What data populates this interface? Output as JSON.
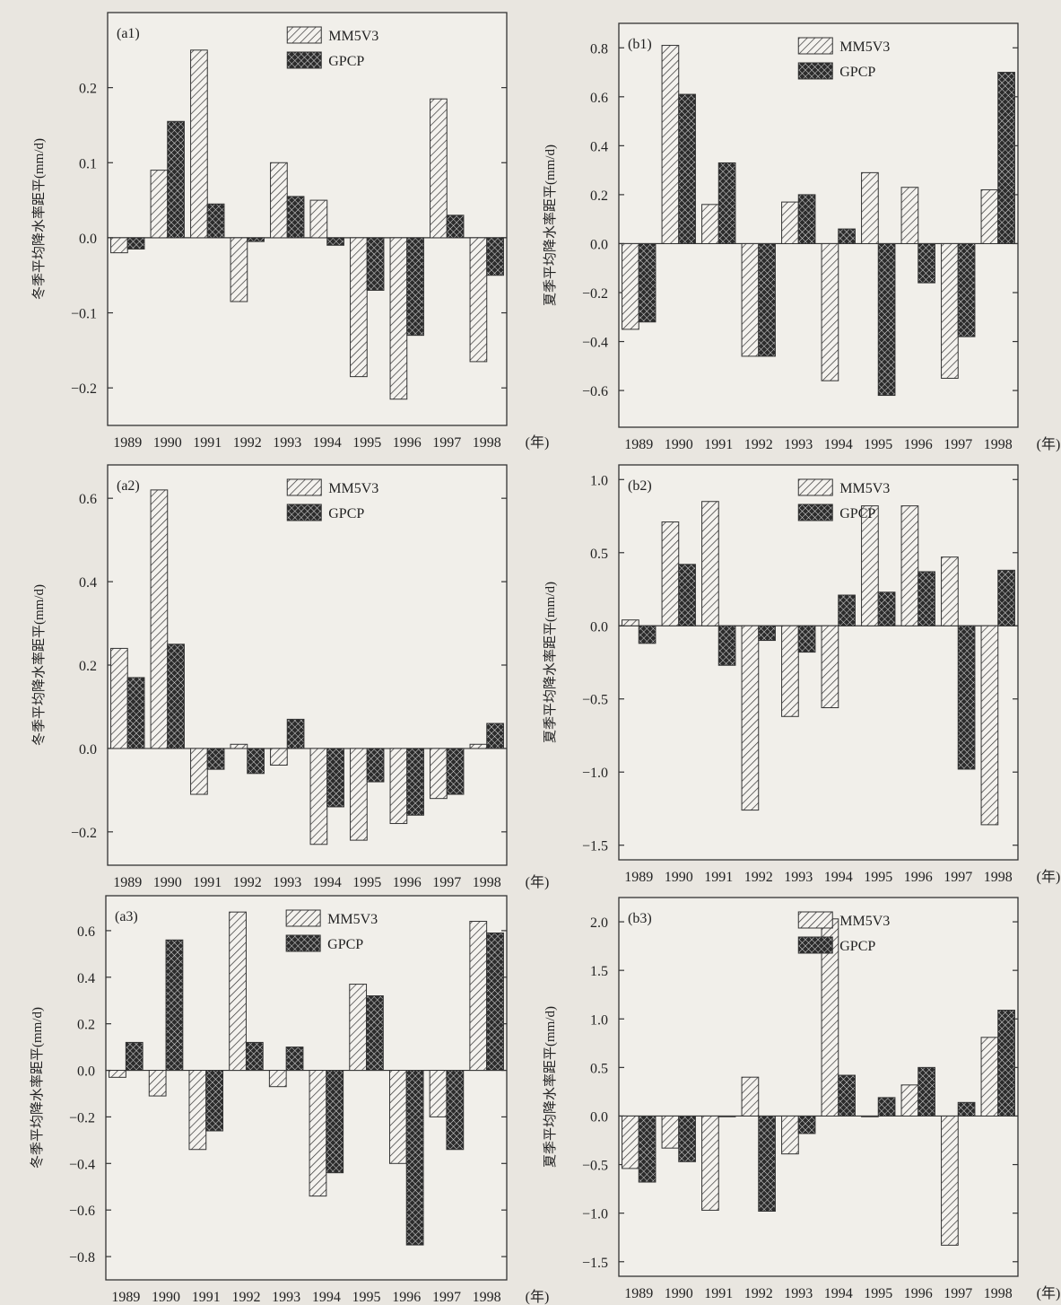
{
  "unit_label": "(年)",
  "chart_data": [
    {
      "id": "a1",
      "type": "bar",
      "panel_label": "(a1)",
      "ylabel": "冬季平均降水率距平(mm/d)",
      "categories": [
        "1989",
        "1990",
        "1991",
        "1992",
        "1993",
        "1994",
        "1995",
        "1996",
        "1997",
        "1998"
      ],
      "ylim": [
        -0.25,
        0.3
      ],
      "yticks": [
        -0.2,
        -0.1,
        0.0,
        0.1,
        0.2
      ],
      "ytick_labels": [
        "−0.2",
        "−0.1",
        "0.0",
        "0.1",
        "0.2"
      ],
      "legend": "top-center",
      "series": [
        {
          "name": "MM5V3",
          "values": [
            -0.02,
            0.09,
            0.25,
            -0.085,
            0.1,
            0.05,
            -0.185,
            -0.215,
            0.185,
            -0.165
          ]
        },
        {
          "name": "GPCP",
          "values": [
            -0.015,
            0.155,
            0.045,
            -0.005,
            0.055,
            -0.01,
            -0.07,
            -0.13,
            0.03,
            -0.05
          ]
        }
      ]
    },
    {
      "id": "b1",
      "type": "bar",
      "panel_label": "(b1)",
      "ylabel": "夏季平均降水率距平(mm/d)",
      "categories": [
        "1989",
        "1990",
        "1991",
        "1992",
        "1993",
        "1994",
        "1995",
        "1996",
        "1997",
        "1998"
      ],
      "ylim": [
        -0.75,
        0.9
      ],
      "yticks": [
        -0.6,
        -0.4,
        -0.2,
        0.0,
        0.2,
        0.4,
        0.6,
        0.8
      ],
      "ytick_labels": [
        "−0.6",
        "−0.4",
        "−0.2",
        "0.0",
        "0.2",
        "0.4",
        "0.6",
        "0.8"
      ],
      "legend": "top-center",
      "series": [
        {
          "name": "MM5V3",
          "values": [
            -0.35,
            0.81,
            0.16,
            -0.46,
            0.17,
            -0.56,
            0.29,
            0.23,
            -0.55,
            0.22
          ]
        },
        {
          "name": "GPCP",
          "values": [
            -0.32,
            0.61,
            0.33,
            -0.46,
            0.2,
            0.06,
            -0.62,
            -0.16,
            -0.38,
            0.7
          ]
        }
      ]
    },
    {
      "id": "a2",
      "type": "bar",
      "panel_label": "(a2)",
      "ylabel": "冬季平均降水率距平(mm/d)",
      "categories": [
        "1989",
        "1990",
        "1991",
        "1992",
        "1993",
        "1994",
        "1995",
        "1996",
        "1997",
        "1998"
      ],
      "ylim": [
        -0.28,
        0.68
      ],
      "yticks": [
        -0.2,
        0.0,
        0.2,
        0.4,
        0.6
      ],
      "ytick_labels": [
        "−0.2",
        "0.0",
        "0.2",
        "0.4",
        "0.6"
      ],
      "legend": "top-center",
      "series": [
        {
          "name": "MM5V3",
          "values": [
            0.24,
            0.62,
            -0.11,
            0.01,
            -0.04,
            -0.23,
            -0.22,
            -0.18,
            -0.12,
            0.01
          ]
        },
        {
          "name": "GPCP",
          "values": [
            0.17,
            0.25,
            -0.05,
            -0.06,
            0.07,
            -0.14,
            -0.08,
            -0.16,
            -0.11,
            0.06
          ]
        }
      ]
    },
    {
      "id": "b2",
      "type": "bar",
      "panel_label": "(b2)",
      "ylabel": "夏季平均降水率距平(mm/d)",
      "categories": [
        "1989",
        "1990",
        "1991",
        "1992",
        "1993",
        "1994",
        "1995",
        "1996",
        "1997",
        "1998"
      ],
      "ylim": [
        -1.6,
        1.1
      ],
      "yticks": [
        -1.5,
        -1.0,
        -0.5,
        0.0,
        0.5,
        1.0
      ],
      "ytick_labels": [
        "−1.5",
        "−1.0",
        "−0.5",
        "0.0",
        "0.5",
        "1.0"
      ],
      "legend": "top-center",
      "series": [
        {
          "name": "MM5V3",
          "values": [
            0.04,
            0.71,
            0.85,
            -1.26,
            -0.62,
            -0.56,
            0.82,
            0.82,
            0.47,
            -1.36
          ]
        },
        {
          "name": "GPCP",
          "values": [
            -0.12,
            0.42,
            -0.27,
            -0.1,
            -0.18,
            0.21,
            0.23,
            0.37,
            -0.98,
            0.38
          ]
        }
      ]
    },
    {
      "id": "a3",
      "type": "bar",
      "panel_label": "(a3)",
      "ylabel": "冬季平均降水率距平(mm/d)",
      "categories": [
        "1989",
        "1990",
        "1991",
        "1992",
        "1993",
        "1994",
        "1995",
        "1996",
        "1997",
        "1998"
      ],
      "ylim": [
        -0.9,
        0.75
      ],
      "yticks": [
        -0.8,
        -0.6,
        -0.4,
        -0.2,
        0.0,
        0.2,
        0.4,
        0.6
      ],
      "ytick_labels": [
        "−0.8",
        "−0.6",
        "−0.4",
        "−0.2",
        "0.0",
        "0.2",
        "0.4",
        "0.6"
      ],
      "legend": "top-center",
      "series": [
        {
          "name": "MM5V3",
          "values": [
            -0.03,
            -0.11,
            -0.34,
            0.68,
            -0.07,
            -0.54,
            0.37,
            -0.4,
            -0.2,
            0.64
          ]
        },
        {
          "name": "GPCP",
          "values": [
            0.12,
            0.56,
            -0.26,
            0.12,
            0.1,
            -0.44,
            0.32,
            -0.75,
            -0.34,
            0.59
          ]
        }
      ]
    },
    {
      "id": "b3",
      "type": "bar",
      "panel_label": "(b3)",
      "ylabel": "夏季平均降水率距平(mm/d)",
      "categories": [
        "1989",
        "1990",
        "1991",
        "1992",
        "1993",
        "1994",
        "1995",
        "1996",
        "1997",
        "1998"
      ],
      "ylim": [
        -1.65,
        2.25
      ],
      "yticks": [
        -1.5,
        -1.0,
        -0.5,
        0.0,
        0.5,
        1.0,
        1.5,
        2.0
      ],
      "ytick_labels": [
        "−1.5",
        "−1.0",
        "−0.5",
        "0.0",
        "0.5",
        "1.0",
        "1.5",
        "2.0"
      ],
      "legend": "top-center",
      "series": [
        {
          "name": "MM5V3",
          "values": [
            -0.54,
            -0.33,
            -0.97,
            0.4,
            -0.39,
            2.03,
            0.0,
            0.32,
            -1.33,
            0.81
          ]
        },
        {
          "name": "GPCP",
          "values": [
            -0.68,
            -0.47,
            0.0,
            -0.98,
            -0.18,
            0.42,
            0.19,
            0.5,
            0.14,
            1.09
          ]
        }
      ]
    }
  ]
}
